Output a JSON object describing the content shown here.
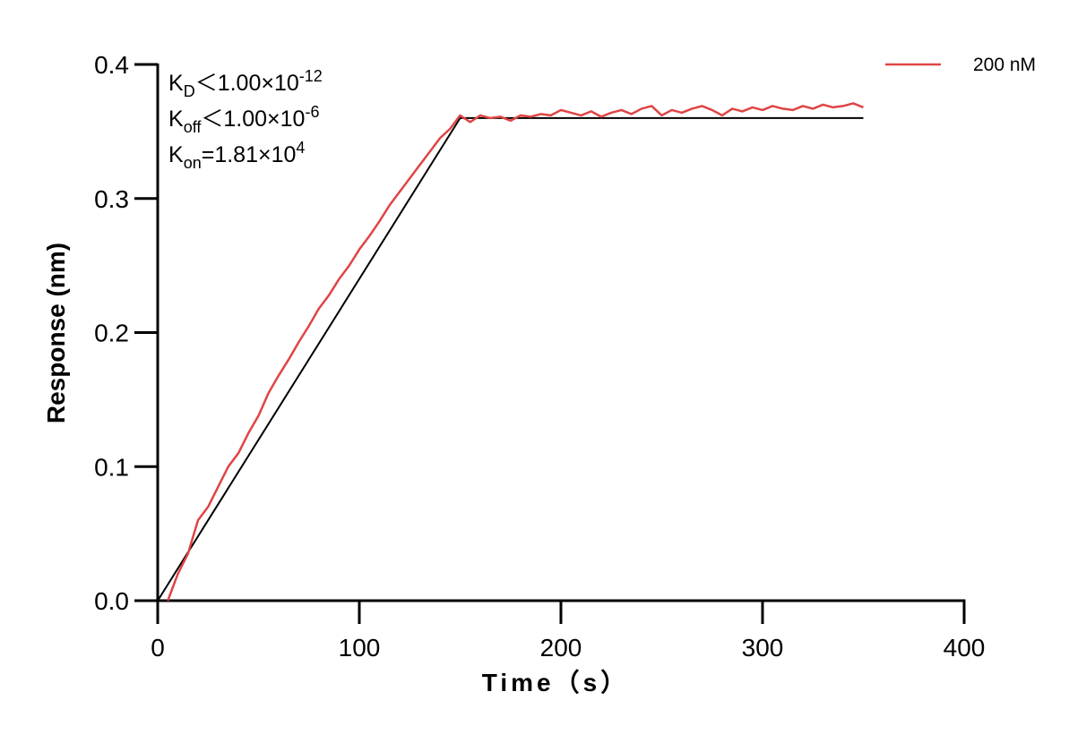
{
  "chart_data": {
    "type": "line",
    "xlabel": "Time（s）",
    "ylabel": "Response (nm)",
    "xlim": [
      0,
      400
    ],
    "xticks": [
      0,
      100,
      200,
      300,
      400
    ],
    "ylim": [
      0,
      0.4
    ],
    "yticks": [
      {
        "value": 0,
        "label": "0.0"
      },
      0.1,
      0.2,
      0.3,
      0.4
    ],
    "legend": "top-right",
    "annotations": [
      {
        "base": "K",
        "sub": "D",
        "text": "＜1.00×10",
        "sup": "-12"
      },
      {
        "base": "K",
        "sub": "off",
        "text": "＜1.00×10",
        "sup": "-6"
      },
      {
        "base": "K",
        "sub": "on",
        "text": "=1.81×10",
        "sup": "4"
      }
    ],
    "series": [
      {
        "name": "200 nM",
        "color": "#e04444",
        "x": [
          5,
          10,
          15,
          20,
          25,
          30,
          35,
          40,
          45,
          50,
          55,
          60,
          65,
          70,
          75,
          80,
          85,
          90,
          95,
          100,
          105,
          110,
          115,
          120,
          125,
          130,
          135,
          140,
          145,
          150,
          155,
          160,
          165,
          170,
          175,
          180,
          185,
          190,
          195,
          200,
          205,
          210,
          215,
          220,
          225,
          230,
          235,
          240,
          245,
          250,
          255,
          260,
          265,
          270,
          275,
          280,
          285,
          290,
          295,
          300,
          305,
          310,
          315,
          320,
          325,
          330,
          335,
          340,
          345,
          350
        ],
        "values": [
          0.0,
          0.02,
          0.035,
          0.06,
          0.07,
          0.085,
          0.1,
          0.11,
          0.125,
          0.138,
          0.155,
          0.168,
          0.18,
          0.193,
          0.205,
          0.218,
          0.228,
          0.24,
          0.25,
          0.262,
          0.272,
          0.283,
          0.295,
          0.305,
          0.315,
          0.325,
          0.335,
          0.345,
          0.352,
          0.362,
          0.357,
          0.362,
          0.36,
          0.361,
          0.358,
          0.362,
          0.361,
          0.363,
          0.362,
          0.366,
          0.364,
          0.362,
          0.365,
          0.361,
          0.364,
          0.366,
          0.363,
          0.367,
          0.369,
          0.362,
          0.366,
          0.364,
          0.367,
          0.369,
          0.366,
          0.362,
          0.367,
          0.365,
          0.368,
          0.366,
          0.369,
          0.367,
          0.366,
          0.369,
          0.367,
          0.37,
          0.368,
          0.369,
          0.371,
          0.368
        ]
      },
      {
        "color": "#000000",
        "x": [
          0,
          150,
          350
        ],
        "values": [
          0,
          0.36,
          0.36
        ]
      }
    ]
  }
}
